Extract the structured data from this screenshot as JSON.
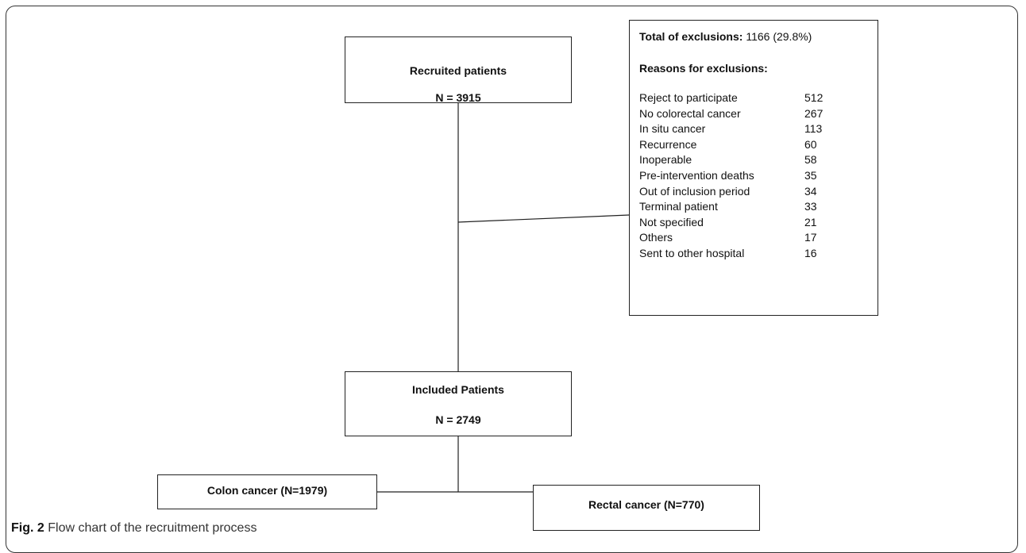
{
  "nodes": [
    {
      "label": "Recruited patients",
      "count": "N = 3915"
    },
    {
      "label": "Included Patients",
      "count": "N = 2749"
    },
    {
      "label": "Colon cancer (N=1979)"
    },
    {
      "label": "Rectal cancer (N=770)"
    }
  ],
  "exclusions": {
    "total_label": "Total of exclusions:",
    "total_value": "1166 (29.8%)",
    "reasons_title": "Reasons for exclusions:",
    "rows": [
      [
        "Reject to participate",
        "512"
      ],
      [
        "No colorectal cancer",
        "267"
      ],
      [
        "In situ cancer",
        "113"
      ],
      [
        "Recurrence",
        "60"
      ],
      [
        "Inoperable",
        "58"
      ],
      [
        "Pre-intervention deaths",
        "35"
      ],
      [
        "Out of inclusion period",
        "34"
      ],
      [
        "Terminal patient",
        "33"
      ],
      [
        "Not specified",
        "21"
      ],
      [
        "Others",
        "17"
      ],
      [
        "Sent to other hospital",
        "16"
      ]
    ]
  },
  "caption": {
    "label": "Fig. 2",
    "text": "Flow chart of the recruitment process"
  }
}
